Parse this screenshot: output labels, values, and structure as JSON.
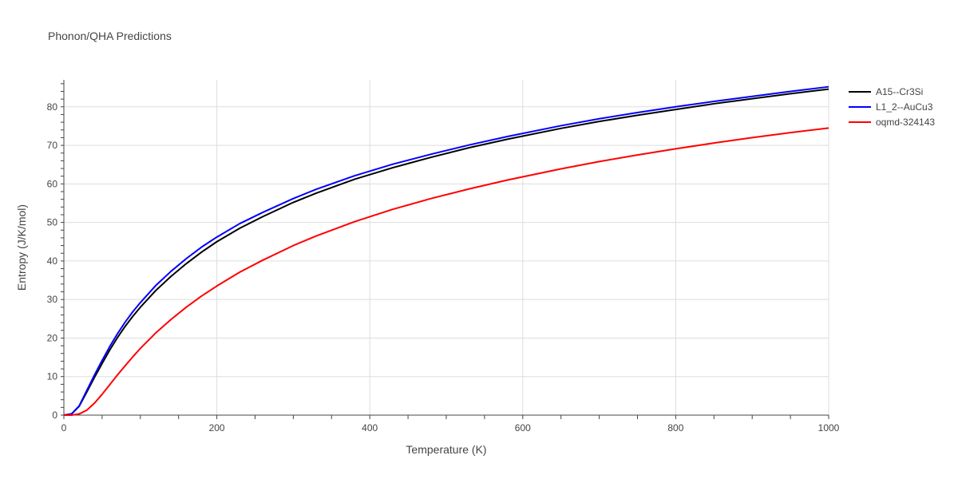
{
  "chart_data": {
    "type": "line",
    "title": "Phonon/QHA Predictions",
    "xlabel": "Temperature (K)",
    "ylabel": "Entropy (J/K/mol)",
    "xlim": [
      0,
      1000
    ],
    "ylim": [
      0,
      87
    ],
    "xticks": [
      0,
      200,
      400,
      600,
      800,
      1000
    ],
    "yticks": [
      0,
      10,
      20,
      30,
      40,
      50,
      60,
      70,
      80
    ],
    "grid": true,
    "legend_position": "top-right",
    "series": [
      {
        "name": "A15--Cr3Si",
        "color": "#000000",
        "x": [
          0,
          10,
          20,
          30,
          40,
          50,
          60,
          70,
          80,
          90,
          100,
          120,
          140,
          160,
          180,
          200,
          230,
          260,
          300,
          330,
          380,
          430,
          480,
          530,
          580,
          650,
          700,
          750,
          800,
          850,
          900,
          950,
          1000
        ],
        "y": [
          0,
          0.3,
          2.3,
          6,
          9.8,
          13.4,
          16.9,
          20.1,
          23,
          25.6,
          28,
          32.3,
          36,
          39.3,
          42.3,
          45,
          48.5,
          51.5,
          55.2,
          57.6,
          61.2,
          64.2,
          66.9,
          69.4,
          71.6,
          74.4,
          76.2,
          77.8,
          79.3,
          80.8,
          82.1,
          83.4,
          84.6
        ]
      },
      {
        "name": "L1_2--AuCu3",
        "color": "#0000ff",
        "x": [
          0,
          10,
          20,
          30,
          40,
          50,
          60,
          70,
          80,
          90,
          100,
          120,
          140,
          160,
          180,
          200,
          230,
          260,
          300,
          330,
          380,
          430,
          480,
          530,
          580,
          650,
          700,
          750,
          800,
          850,
          900,
          950,
          1000
        ],
        "y": [
          0,
          0.3,
          2.4,
          6.4,
          10.4,
          14.2,
          17.8,
          21.1,
          24.1,
          26.8,
          29.2,
          33.6,
          37.3,
          40.6,
          43.6,
          46.2,
          49.7,
          52.6,
          56.2,
          58.6,
          62.1,
          65.1,
          67.7,
          70.1,
          72.3,
          75.1,
          76.9,
          78.5,
          80,
          81.4,
          82.7,
          84,
          85.2
        ]
      },
      {
        "name": "oqmd-324143",
        "color": "#ff0000",
        "x": [
          0,
          10,
          20,
          30,
          40,
          50,
          60,
          70,
          80,
          90,
          100,
          120,
          140,
          160,
          180,
          200,
          230,
          260,
          300,
          330,
          380,
          430,
          480,
          530,
          580,
          650,
          700,
          750,
          800,
          850,
          900,
          950,
          1000
        ],
        "y": [
          0,
          0,
          0.3,
          1.3,
          3.1,
          5.4,
          7.9,
          10.4,
          12.8,
          15.1,
          17.3,
          21.3,
          24.8,
          28,
          30.9,
          33.5,
          37.1,
          40.2,
          44,
          46.5,
          50.2,
          53.4,
          56.2,
          58.7,
          61,
          63.9,
          65.8,
          67.5,
          69.1,
          70.6,
          72,
          73.3,
          74.5
        ]
      }
    ]
  }
}
